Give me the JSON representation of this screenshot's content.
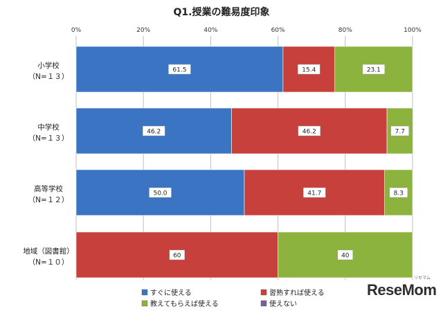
{
  "chart_data": {
    "type": "bar",
    "orientation": "horizontal",
    "stacked": true,
    "title": "Q1.授業の難易度印象",
    "x_ticks": [
      "0%",
      "20%",
      "40%",
      "60%",
      "80%",
      "100%"
    ],
    "xlim": [
      0,
      100
    ],
    "grid": true,
    "legend_position": "bottom",
    "categories": [
      {
        "line1": "小学校",
        "line2": "（N=１３）"
      },
      {
        "line1": "中学校",
        "line2": "（N=１３）"
      },
      {
        "line1": "高等学校",
        "line2": "（N=１２）"
      },
      {
        "line1": "地域（図書館）",
        "line2": "（N=１０）"
      }
    ],
    "series": [
      {
        "name": "すぐに使える",
        "color": "#3b74c3",
        "values": [
          61.5,
          46.2,
          50.0,
          null
        ],
        "labels": [
          "61.5",
          "46.2",
          "50.0",
          null
        ]
      },
      {
        "name": "習熟すれば使える",
        "color": "#c8403c",
        "values": [
          15.4,
          46.2,
          41.7,
          60
        ],
        "labels": [
          "15.4",
          "46.2",
          "41.7",
          "60"
        ]
      },
      {
        "name": "教えてもらえば使える",
        "color": "#8cb33e",
        "values": [
          23.1,
          7.7,
          8.3,
          40
        ],
        "labels": [
          "23.1",
          "7.7",
          "8.3",
          "40"
        ]
      },
      {
        "name": "使えない",
        "color": "#7a5aa0",
        "values": [
          null,
          null,
          null,
          null
        ],
        "labels": [
          null,
          null,
          null,
          null
        ]
      }
    ]
  },
  "watermark": {
    "text": "ReseMom",
    "sub": "リセマム"
  }
}
